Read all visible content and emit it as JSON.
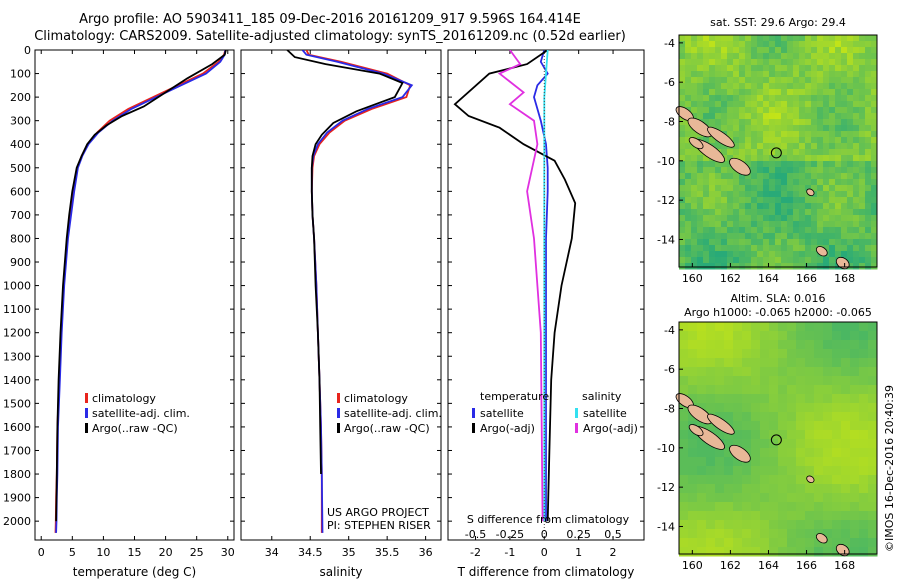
{
  "header": {
    "line1": "Argo profile: AO 5903411_185 09-Dec-2016 20161209_917 9.596S 164.414E",
    "line2": "Climatology: CARS2009. Satellite-adjusted climatology: synTS_20161209.nc (0.52d earlier)"
  },
  "credits": {
    "project": "US ARGO PROJECT",
    "pi": "PI: STEPHEN RISER"
  },
  "stamp": "©IMOS 16-Dec-2016 20:40:39",
  "colors": {
    "climatology": "#e8241c",
    "satellite": "#2a2ae6",
    "argo": "#000000",
    "satellite_salinity": "#33e0f0",
    "argo_salinity": "#e030e0",
    "land": "#e8b898"
  },
  "chart_data": [
    {
      "type": "line",
      "name": "temperature-profile",
      "xlabel": "temperature (deg C)",
      "xlim": [
        -1,
        31
      ],
      "ylim": [
        2080,
        0
      ],
      "xticks": [
        0,
        5,
        10,
        15,
        20,
        25,
        30
      ],
      "yticks": [
        0,
        100,
        200,
        300,
        400,
        500,
        600,
        700,
        800,
        900,
        1000,
        1100,
        1200,
        1300,
        1400,
        1500,
        1600,
        1700,
        1800,
        1900,
        2000
      ],
      "legend": [
        "climatology",
        "satellite-adj. clim.",
        "Argo(..raw -QC)"
      ],
      "series": [
        {
          "name": "climatology",
          "color": "#e8241c",
          "x": [
            29.6,
            29.4,
            28.5,
            26,
            22,
            18,
            14,
            11,
            9,
            7.5,
            6.5,
            5.8,
            5.2,
            4.7,
            4.2,
            3.6,
            3.2,
            2.9,
            2.6,
            2.5,
            2.4,
            2.35,
            2.3
          ],
          "y": [
            0,
            20,
            50,
            100,
            150,
            200,
            250,
            300,
            350,
            400,
            450,
            500,
            600,
            700,
            800,
            1000,
            1200,
            1400,
            1600,
            1800,
            1900,
            2000,
            2050
          ]
        },
        {
          "name": "satellite-adj. clim.",
          "color": "#2a2ae6",
          "x": [
            29.6,
            29.5,
            28.8,
            26.5,
            22.5,
            18.5,
            14.5,
            11.5,
            9.2,
            7.6,
            6.6,
            5.9,
            5.3,
            4.8,
            4.3,
            3.7,
            3.3,
            3.0,
            2.7,
            2.6,
            2.5,
            2.45,
            2.4
          ],
          "y": [
            0,
            20,
            50,
            100,
            150,
            200,
            250,
            300,
            350,
            400,
            450,
            500,
            600,
            700,
            800,
            1000,
            1200,
            1400,
            1600,
            1800,
            1900,
            2000,
            2050
          ]
        },
        {
          "name": "Argo(..raw -QC)",
          "color": "#000000",
          "x": [
            29.7,
            29.5,
            27.5,
            23.5,
            20,
            16.5,
            13,
            10.5,
            8.6,
            7.4,
            6.5,
            5.7,
            5.0,
            4.5,
            4.1,
            3.5,
            3.1,
            2.8,
            2.6,
            2.5,
            2.45,
            2.4
          ],
          "y": [
            0,
            20,
            60,
            120,
            180,
            240,
            280,
            320,
            360,
            400,
            450,
            500,
            600,
            700,
            800,
            1000,
            1200,
            1400,
            1600,
            1800,
            1900,
            2000
          ]
        }
      ]
    },
    {
      "type": "line",
      "name": "salinity-profile",
      "xlabel": "salinity",
      "xlim": [
        33.6,
        36.2
      ],
      "ylim": [
        2080,
        0
      ],
      "xticks": [
        34,
        34.5,
        35,
        35.5,
        36
      ],
      "legend": [
        "climatology",
        "satellite-adj. clim.",
        "Argo(..raw -QC)"
      ],
      "series": [
        {
          "name": "climatology",
          "color": "#e8241c",
          "x": [
            34.45,
            34.48,
            34.9,
            35.5,
            35.8,
            35.75,
            35.3,
            34.95,
            34.75,
            34.62,
            34.55,
            34.53,
            34.52,
            34.53,
            34.55,
            34.58,
            34.6,
            34.62,
            34.64,
            34.65,
            34.65
          ],
          "y": [
            0,
            20,
            50,
            100,
            150,
            200,
            250,
            300,
            350,
            400,
            450,
            500,
            600,
            700,
            800,
            1000,
            1200,
            1400,
            1600,
            1800,
            2050
          ]
        },
        {
          "name": "satellite-adj. clim.",
          "color": "#2a2ae6",
          "x": [
            34.4,
            34.45,
            34.85,
            35.45,
            35.82,
            35.7,
            35.25,
            34.92,
            34.72,
            34.6,
            34.54,
            34.52,
            34.52,
            34.53,
            34.55,
            34.58,
            34.6,
            34.62,
            34.64,
            34.65,
            34.66
          ],
          "y": [
            0,
            20,
            50,
            100,
            150,
            200,
            250,
            300,
            350,
            400,
            450,
            500,
            600,
            700,
            800,
            1000,
            1200,
            1400,
            1600,
            1800,
            2050
          ]
        },
        {
          "name": "Argo(..raw -QC)",
          "color": "#000000",
          "x": [
            34.2,
            34.3,
            34.7,
            35.4,
            35.7,
            35.6,
            35.1,
            34.8,
            34.65,
            34.57,
            34.53,
            34.52,
            34.52,
            34.53,
            34.55,
            34.57,
            34.6,
            34.62,
            34.63,
            34.64
          ],
          "y": [
            0,
            30,
            60,
            100,
            140,
            200,
            260,
            310,
            360,
            400,
            450,
            500,
            600,
            700,
            800,
            1000,
            1200,
            1400,
            1600,
            1800
          ]
        }
      ]
    },
    {
      "type": "line",
      "name": "difference-profile",
      "xlabel": "T difference from climatology",
      "top_axis_label": "S difference from climatology",
      "xlim": [
        -2.8,
        2.9
      ],
      "ylim": [
        2080,
        0
      ],
      "xticks": [
        -2,
        -1,
        0,
        1,
        2
      ],
      "top_ticks": [
        "-0.5",
        "-0.25",
        "0",
        "0.25",
        "0.5"
      ],
      "top_ticks_at": [
        -2,
        -1,
        0,
        1,
        2
      ],
      "legend_headers": [
        "temperature",
        "salinity"
      ],
      "legend": [
        "satellite",
        "Argo(-adj)",
        "satellite",
        "Argo(-adj)"
      ],
      "series": [
        {
          "name": "temperature satellite",
          "color": "#2a2ae6",
          "x": [
            0,
            -0.1,
            0.1,
            -0.2,
            -0.3,
            -0.2,
            -0.1,
            0.05,
            0.1,
            0.1,
            0.05,
            0.05,
            0.05,
            0.05,
            0.05,
            0.05
          ],
          "y": [
            0,
            50,
            100,
            150,
            200,
            250,
            300,
            400,
            500,
            600,
            800,
            1000,
            1200,
            1500,
            1800,
            2000
          ]
        },
        {
          "name": "temperature Argo(-adj)",
          "color": "#000000",
          "x": [
            0.1,
            -0.5,
            -1.6,
            -2.6,
            -2.2,
            -1.3,
            -0.6,
            0.3,
            0.6,
            0.9,
            0.8,
            0.5,
            0.3,
            0.2,
            0.15,
            0.1
          ],
          "y": [
            0,
            60,
            100,
            230,
            280,
            330,
            400,
            470,
            550,
            650,
            800,
            1000,
            1200,
            1400,
            1700,
            2000
          ]
        },
        {
          "name": "salinity satellite",
          "color": "#33e0f0",
          "x": [
            0.1,
            0.05,
            0.0,
            0.0,
            0.0,
            0.0,
            0.0,
            0.0,
            0.0,
            0.0
          ],
          "y": [
            0,
            100,
            200,
            400,
            600,
            800,
            1000,
            1400,
            1800,
            2000
          ]
        },
        {
          "name": "salinity Argo(-adj)",
          "color": "#e030e0",
          "x": [
            -1.0,
            -0.7,
            -1.3,
            -0.6,
            -1.0,
            -0.3,
            -0.2,
            -0.5,
            -0.3,
            -0.1,
            -0.05
          ],
          "y": [
            0,
            60,
            100,
            180,
            230,
            300,
            400,
            600,
            800,
            1200,
            2000
          ]
        }
      ]
    },
    {
      "type": "heatmap",
      "name": "sst-map",
      "title": "sat. SST: 29.6  Argo: 29.4",
      "xticks": [
        160,
        162,
        164,
        166,
        168
      ],
      "yticks": [
        -4,
        -6,
        -8,
        -10,
        -12,
        -14
      ],
      "xlim": [
        159.3,
        169.7
      ],
      "ylim": [
        -15.4,
        -3.6
      ],
      "argo_position": [
        164.414,
        -9.596
      ]
    },
    {
      "type": "heatmap",
      "name": "sla-map",
      "title": "Altim. SLA: 0.016",
      "subtitle": "Argo h1000: -0.065 h2000: -0.065",
      "xticks": [
        160,
        162,
        164,
        166,
        168
      ],
      "yticks": [
        -4,
        -6,
        -8,
        -10,
        -12,
        -14
      ],
      "xlim": [
        159.3,
        169.7
      ],
      "ylim": [
        -15.4,
        -3.6
      ],
      "argo_position": [
        164.414,
        -9.596
      ]
    }
  ]
}
